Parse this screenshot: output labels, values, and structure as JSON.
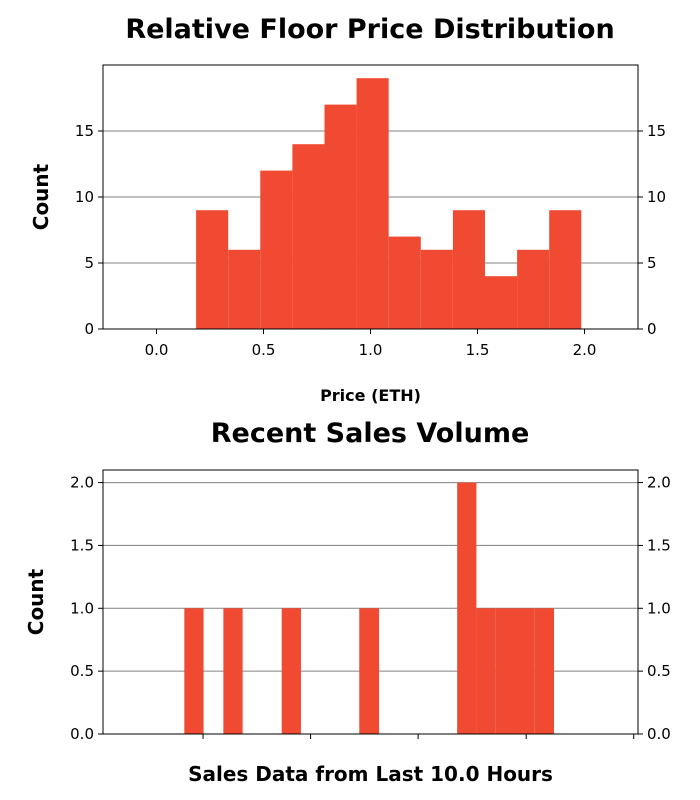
{
  "chart_data": [
    {
      "type": "bar",
      "title": "Relative Floor Price Distribution",
      "xlabel": "Price (ETH)",
      "ylabel": "Count",
      "xlim": [
        -0.25,
        2.25
      ],
      "ylim": [
        0,
        20
      ],
      "xticks": [
        0.0,
        0.5,
        1.0,
        1.5,
        2.0
      ],
      "xtick_labels": [
        "0.0",
        "0.5",
        "1.0",
        "1.5",
        "2.0"
      ],
      "yticks": [
        0,
        5,
        10,
        15
      ],
      "ytick_labels": [
        "0",
        "5",
        "10",
        "15"
      ],
      "grid": "horizontal",
      "bar_color": "#f04a32",
      "grid_color": "#808080",
      "bin_edges": [
        0.185,
        0.335,
        0.485,
        0.635,
        0.785,
        0.935,
        1.085,
        1.235,
        1.385,
        1.535,
        1.685,
        1.835,
        1.985
      ],
      "values": [
        9,
        6,
        12,
        14,
        17,
        19,
        7,
        6,
        9,
        4,
        6,
        9
      ]
    },
    {
      "type": "bar",
      "title": "Recent Sales Volume",
      "xlabel": "Sales Data from Last 10.0 Hours",
      "ylabel": "Count",
      "xlim": [
        0,
        10
      ],
      "ylim": [
        0,
        2.1
      ],
      "yticks": [
        0.0,
        0.5,
        1.0,
        1.5,
        2.0
      ],
      "ytick_labels": [
        "0.0",
        "0.5",
        "1.0",
        "1.5",
        "2.0"
      ],
      "xticks": [
        1.87,
        3.88,
        5.89,
        7.91,
        9.92
      ],
      "grid": "horizontal",
      "bar_color": "#f04a32",
      "grid_color": "#808080",
      "bin_edges": [
        1.52,
        1.88,
        2.25,
        2.61,
        2.97,
        3.34,
        3.7,
        4.07,
        4.43,
        4.79,
        5.16,
        5.52,
        5.89,
        6.25,
        6.62,
        6.98,
        7.34,
        7.71,
        8.07,
        8.43,
        8.8,
        9.16
      ],
      "values": [
        1,
        0,
        1,
        0,
        0,
        1,
        0,
        0,
        0,
        1,
        0,
        0,
        0,
        0,
        2,
        1,
        1,
        1,
        1,
        0,
        0
      ]
    }
  ]
}
